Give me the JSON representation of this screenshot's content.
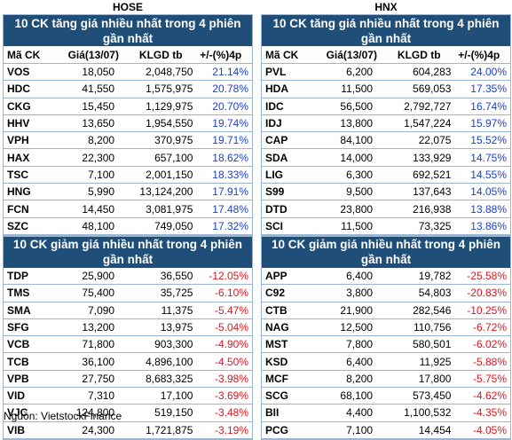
{
  "source": "Nguồn: VietstockFinance",
  "columns": {
    "code": "Mã CK",
    "price": "Giá(13/07)",
    "volume": "KLGD tb",
    "change": "+/-(%)4p"
  },
  "exchanges": [
    {
      "name": "HOSE",
      "gain_title": "10 CK tăng giá nhiều nhất trong 4 phiên gần nhất",
      "gainers": [
        {
          "code": "VOS",
          "price": "18,050",
          "volume": "2,048,750",
          "change": "21.14%"
        },
        {
          "code": "HDC",
          "price": "41,550",
          "volume": "1,575,975",
          "change": "20.78%"
        },
        {
          "code": "CKG",
          "price": "15,450",
          "volume": "1,129,975",
          "change": "20.70%"
        },
        {
          "code": "HHV",
          "price": "13,650",
          "volume": "1,954,550",
          "change": "19.74%"
        },
        {
          "code": "VPH",
          "price": "8,200",
          "volume": "370,975",
          "change": "19.71%"
        },
        {
          "code": "HAX",
          "price": "22,300",
          "volume": "657,100",
          "change": "18.62%"
        },
        {
          "code": "TSC",
          "price": "7,100",
          "volume": "2,001,150",
          "change": "18.33%"
        },
        {
          "code": "HNG",
          "price": "5,990",
          "volume": "13,124,200",
          "change": "17.91%"
        },
        {
          "code": "FCN",
          "price": "14,450",
          "volume": "3,081,975",
          "change": "17.48%"
        },
        {
          "code": "SZC",
          "price": "48,100",
          "volume": "749,050",
          "change": "17.32%"
        }
      ],
      "loss_title": "10 CK giảm giá nhiều nhất trong 4 phiên gần nhất",
      "losers": [
        {
          "code": "TDP",
          "price": "25,900",
          "volume": "36,550",
          "change": "-12.05%"
        },
        {
          "code": "TMS",
          "price": "75,400",
          "volume": "35,725",
          "change": "-6.10%"
        },
        {
          "code": "SMA",
          "price": "7,090",
          "volume": "11,375",
          "change": "-5.47%"
        },
        {
          "code": "SFG",
          "price": "13,200",
          "volume": "13,975",
          "change": "-5.04%"
        },
        {
          "code": "VCB",
          "price": "71,800",
          "volume": "903,300",
          "change": "-4.90%"
        },
        {
          "code": "TCB",
          "price": "36,100",
          "volume": "4,896,100",
          "change": "-4.50%"
        },
        {
          "code": "VPB",
          "price": "27,750",
          "volume": "8,683,325",
          "change": "-3.98%"
        },
        {
          "code": "VID",
          "price": "7,310",
          "volume": "17,100",
          "change": "-3.69%"
        },
        {
          "code": "VJC",
          "price": "124,800",
          "volume": "519,150",
          "change": "-3.48%"
        },
        {
          "code": "VIB",
          "price": "24,300",
          "volume": "1,721,875",
          "change": "-3.19%"
        }
      ]
    },
    {
      "name": "HNX",
      "gain_title": "10 CK tăng giá nhiều nhất trong 4 phiên gần nhất",
      "gainers": [
        {
          "code": "PVL",
          "price": "6,200",
          "volume": "604,283",
          "change": "24.00%"
        },
        {
          "code": "HDA",
          "price": "11,500",
          "volume": "569,053",
          "change": "17.35%"
        },
        {
          "code": "IDC",
          "price": "56,500",
          "volume": "2,792,727",
          "change": "16.74%"
        },
        {
          "code": "IDJ",
          "price": "13,800",
          "volume": "1,547,224",
          "change": "15.97%"
        },
        {
          "code": "CAP",
          "price": "84,100",
          "volume": "22,075",
          "change": "15.52%"
        },
        {
          "code": "SDA",
          "price": "14,000",
          "volume": "133,929",
          "change": "14.75%"
        },
        {
          "code": "LIG",
          "price": "6,300",
          "volume": "692,521",
          "change": "14.55%"
        },
        {
          "code": "S99",
          "price": "9,500",
          "volume": "137,643",
          "change": "14.05%"
        },
        {
          "code": "DTD",
          "price": "23,800",
          "volume": "216,938",
          "change": "13.88%"
        },
        {
          "code": "SCI",
          "price": "11,500",
          "volume": "73,325",
          "change": "13.86%"
        }
      ],
      "loss_title": "10 CK giảm giá nhiều nhất trong 4 phiên gần nhất",
      "losers": [
        {
          "code": "APP",
          "price": "6,400",
          "volume": "19,782",
          "change": "-25.58%"
        },
        {
          "code": "C92",
          "price": "3,800",
          "volume": "54,803",
          "change": "-20.83%"
        },
        {
          "code": "CTB",
          "price": "21,900",
          "volume": "282,546",
          "change": "-10.25%"
        },
        {
          "code": "NAG",
          "price": "12,500",
          "volume": "110,756",
          "change": "-6.72%"
        },
        {
          "code": "MST",
          "price": "7,800",
          "volume": "580,501",
          "change": "-6.02%"
        },
        {
          "code": "KSD",
          "price": "6,400",
          "volume": "11,925",
          "change": "-5.88%"
        },
        {
          "code": "MCF",
          "price": "8,200",
          "volume": "17,800",
          "change": "-5.75%"
        },
        {
          "code": "SCG",
          "price": "68,100",
          "volume": "573,450",
          "change": "-4.62%"
        },
        {
          "code": "BII",
          "price": "4,400",
          "volume": "1,100,532",
          "change": "-4.35%"
        },
        {
          "code": "PCG",
          "price": "7,100",
          "volume": "14,454",
          "change": "-4.05%"
        }
      ]
    }
  ]
}
